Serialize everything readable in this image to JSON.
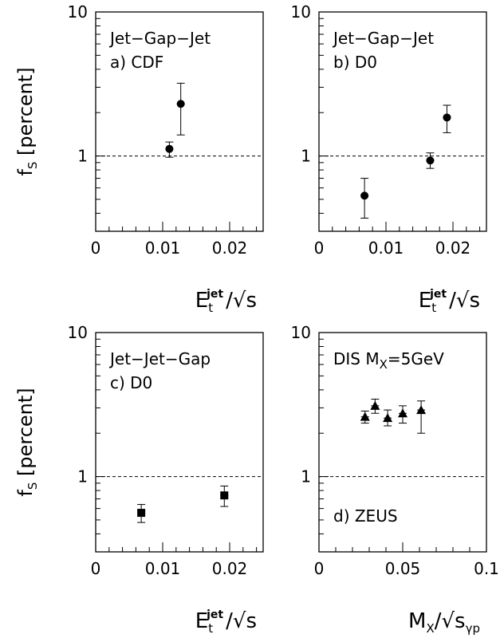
{
  "chart_data": [
    {
      "type": "scatter",
      "panel": "a",
      "text_lines": [
        "Jet−Gap−Jet",
        "a)  CDF"
      ],
      "ylabel": "f",
      "ylabel_sub": "S",
      "ylabel_rest": " [percent]",
      "x_axis": {
        "main": "E",
        "sub": "t",
        "sup": "jet",
        "tail": "/√s"
      },
      "yscale": "log",
      "ylim": [
        0.3,
        10
      ],
      "xlim": [
        0,
        0.025
      ],
      "xticks": [
        "0",
        "0.01",
        "0.02"
      ],
      "yticks": [
        "1",
        "10"
      ],
      "reference_line": 1,
      "marker": "circle",
      "points": [
        {
          "x": 0.011,
          "y": 1.12,
          "ylo": 0.98,
          "yhi": 1.25
        },
        {
          "x": 0.0127,
          "y": 2.3,
          "ylo": 1.4,
          "yhi": 3.2
        }
      ]
    },
    {
      "type": "scatter",
      "panel": "b",
      "text_lines": [
        "Jet−Gap−Jet",
        "b)  D0"
      ],
      "ylabel": "",
      "x_axis": {
        "main": "E",
        "sub": "t",
        "sup": "jet",
        "tail": "/√s"
      },
      "yscale": "log",
      "ylim": [
        0.3,
        10
      ],
      "xlim": [
        0,
        0.025
      ],
      "xticks": [
        "0",
        "0.01",
        "0.02"
      ],
      "yticks": [
        "1",
        "10"
      ],
      "reference_line": 1,
      "marker": "circle",
      "points": [
        {
          "x": 0.0068,
          "y": 0.53,
          "ylo": 0.37,
          "yhi": 0.7
        },
        {
          "x": 0.0166,
          "y": 0.93,
          "ylo": 0.82,
          "yhi": 1.05
        },
        {
          "x": 0.0191,
          "y": 1.85,
          "ylo": 1.45,
          "yhi": 2.25
        }
      ]
    },
    {
      "type": "scatter",
      "panel": "c",
      "text_lines": [
        "Jet−Jet−Gap",
        "c)  D0"
      ],
      "ylabel": "f",
      "ylabel_sub": "S",
      "ylabel_rest": " [percent]",
      "x_axis": {
        "main": "E",
        "sub": "t",
        "sup": "jet",
        "tail": "/√s"
      },
      "yscale": "log",
      "ylim": [
        0.3,
        10
      ],
      "xlim": [
        0,
        0.025
      ],
      "xticks": [
        "0",
        "0.01",
        "0.02"
      ],
      "yticks": [
        "1",
        "10"
      ],
      "reference_line": 1,
      "marker": "square",
      "points": [
        {
          "x": 0.0068,
          "y": 0.56,
          "ylo": 0.48,
          "yhi": 0.64
        },
        {
          "x": 0.0192,
          "y": 0.74,
          "ylo": 0.62,
          "yhi": 0.86
        }
      ]
    },
    {
      "type": "scatter",
      "panel": "d",
      "text_lines": [
        "DIS M",
        "=5GeV",
        "d)  ZEUS"
      ],
      "title_sub": "X",
      "ylabel": "",
      "x_axis": {
        "main": "M",
        "sub": "X",
        "tail": "/√s",
        "sub2": "γp"
      },
      "yscale": "log",
      "ylim": [
        0.3,
        10
      ],
      "xlim": [
        0,
        0.1
      ],
      "xticks": [
        "0",
        "0.05",
        "0.1"
      ],
      "yticks": [
        "1",
        "10"
      ],
      "reference_line": 1,
      "marker": "triangle",
      "points": [
        {
          "x": 0.0275,
          "y": 2.6,
          "ylo": 2.35,
          "yhi": 2.85
        },
        {
          "x": 0.0335,
          "y": 3.1,
          "ylo": 2.75,
          "yhi": 3.45
        },
        {
          "x": 0.041,
          "y": 2.55,
          "ylo": 2.25,
          "yhi": 2.9
        },
        {
          "x": 0.05,
          "y": 2.75,
          "ylo": 2.35,
          "yhi": 3.1
        },
        {
          "x": 0.061,
          "y": 2.9,
          "ylo": 2.0,
          "yhi": 3.35
        }
      ]
    }
  ]
}
